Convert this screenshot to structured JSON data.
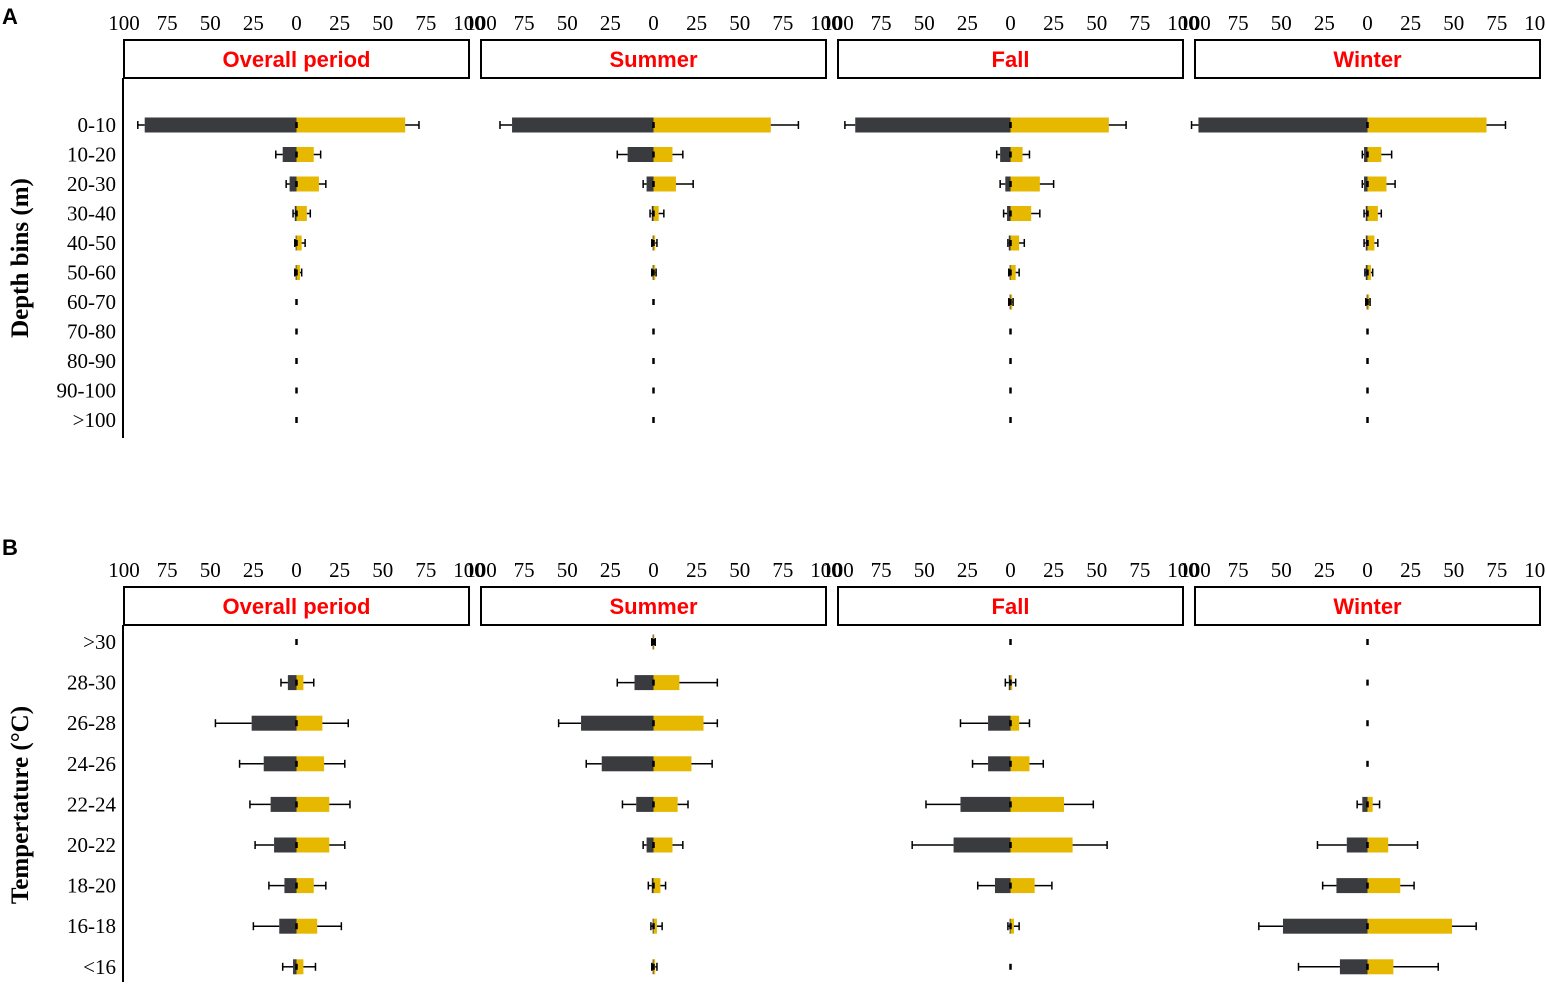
{
  "colors": {
    "left": "#3a3b3f",
    "right": "#e6b800",
    "title": "#ff0000",
    "axis": "#000000"
  },
  "x_ticks": [
    "100",
    "75",
    "50",
    "25",
    "0",
    "25",
    "50",
    "75",
    "100"
  ],
  "panels_text": [
    "Overall period",
    "Summer",
    "Fall",
    "Winter"
  ],
  "chart_data": [
    {
      "tag": "A",
      "type": "bar",
      "orientation": "horizontal-diverging",
      "ylabel": "Depth bins (m)",
      "categories": [
        "0-10",
        "10-20",
        "20-30",
        "30-40",
        "40-50",
        "50-60",
        "60-70",
        "70-80",
        "80-90",
        "90-100",
        ">100"
      ],
      "xlim": [
        -100,
        100
      ],
      "panels": [
        {
          "title": "Overall period",
          "left": [
            88,
            8,
            4,
            1,
            0.5,
            0.5,
            0,
            0,
            0,
            0,
            0
          ],
          "left_err": [
            4,
            4,
            2,
            1,
            0.5,
            0.5,
            0,
            0,
            0,
            0,
            0
          ],
          "right": [
            63,
            10,
            13,
            6,
            3,
            2,
            0,
            0,
            0,
            0,
            0
          ],
          "right_err": [
            8,
            4,
            4,
            2,
            2,
            1,
            0,
            0,
            0,
            0,
            0
          ]
        },
        {
          "title": "Summer",
          "left": [
            82,
            15,
            4,
            1,
            0.5,
            0.5,
            0,
            0,
            0,
            0,
            0
          ],
          "left_err": [
            7,
            6,
            2,
            1,
            0.5,
            0.5,
            0,
            0,
            0,
            0,
            0
          ],
          "right": [
            68,
            11,
            13,
            3,
            1,
            1,
            0,
            0,
            0,
            0,
            0
          ],
          "right_err": [
            16,
            6,
            10,
            3,
            1,
            0.5,
            0,
            0,
            0,
            0,
            0
          ]
        },
        {
          "title": "Fall",
          "left": [
            90,
            6,
            3,
            2,
            1,
            0.5,
            0.5,
            0,
            0,
            0,
            0
          ],
          "left_err": [
            6,
            2,
            3,
            2,
            0.5,
            0.5,
            0.5,
            0,
            0,
            0,
            0
          ],
          "right": [
            57,
            7,
            17,
            12,
            5,
            3,
            1,
            0,
            0,
            0,
            0
          ],
          "right_err": [
            10,
            4,
            8,
            5,
            3,
            2,
            0.5,
            0,
            0,
            0,
            0
          ]
        },
        {
          "title": "Winter",
          "left": [
            98,
            2,
            2,
            1,
            1,
            1,
            0.5,
            0,
            0,
            0,
            0
          ],
          "left_err": [
            4,
            1,
            1,
            1,
            1,
            0.5,
            0.5,
            0,
            0,
            0,
            0
          ],
          "right": [
            69,
            8,
            11,
            6,
            4,
            2,
            1,
            0,
            0,
            0,
            0
          ],
          "right_err": [
            11,
            6,
            5,
            2,
            2,
            1,
            0.5,
            0,
            0,
            0,
            0
          ]
        }
      ]
    },
    {
      "tag": "B",
      "type": "bar",
      "orientation": "horizontal-diverging",
      "ylabel": "Tempertature (°C)",
      "categories": [
        ">30",
        "28-30",
        "26-28",
        "24-26",
        "22-24",
        "20-22",
        "18-20",
        "16-18",
        "<16"
      ],
      "xlim": [
        -100,
        100
      ],
      "panels": [
        {
          "title": "Overall period",
          "left": [
            0,
            5,
            26,
            19,
            15,
            13,
            7,
            10,
            2
          ],
          "left_err": [
            0,
            4,
            21,
            14,
            12,
            11,
            9,
            15,
            6
          ],
          "right": [
            0,
            4,
            15,
            16,
            19,
            19,
            10,
            12,
            4
          ],
          "right_err": [
            0,
            6,
            15,
            12,
            12,
            9,
            7,
            14,
            7
          ]
        },
        {
          "title": "Summer",
          "left": [
            0.5,
            11,
            42,
            30,
            10,
            4,
            1,
            0.5,
            0.5
          ],
          "left_err": [
            0.5,
            10,
            13,
            9,
            8,
            2,
            2,
            1,
            0.5
          ],
          "right": [
            0.5,
            15,
            29,
            22,
            14,
            11,
            4,
            2,
            1
          ],
          "right_err": [
            0.5,
            22,
            8,
            12,
            6,
            6,
            3,
            3,
            1
          ]
        },
        {
          "title": "Fall",
          "left": [
            0,
            1,
            13,
            13,
            29,
            33,
            9,
            0.5,
            0
          ],
          "left_err": [
            0,
            2,
            16,
            9,
            20,
            24,
            10,
            1,
            0
          ],
          "right": [
            0,
            1,
            5,
            11,
            31,
            36,
            14,
            2,
            0
          ],
          "right_err": [
            0,
            2,
            6,
            8,
            17,
            20,
            10,
            3,
            0
          ]
        },
        {
          "title": "Winter",
          "left": [
            0,
            0,
            0,
            0,
            3,
            12,
            18,
            49,
            16
          ],
          "left_err": [
            0,
            0,
            0,
            0,
            3,
            17,
            8,
            14,
            24
          ],
          "right": [
            0,
            0,
            0,
            0,
            3,
            12,
            19,
            49,
            15
          ],
          "right_err": [
            0,
            0,
            0,
            0,
            4,
            17,
            8,
            14,
            26
          ]
        }
      ]
    }
  ]
}
